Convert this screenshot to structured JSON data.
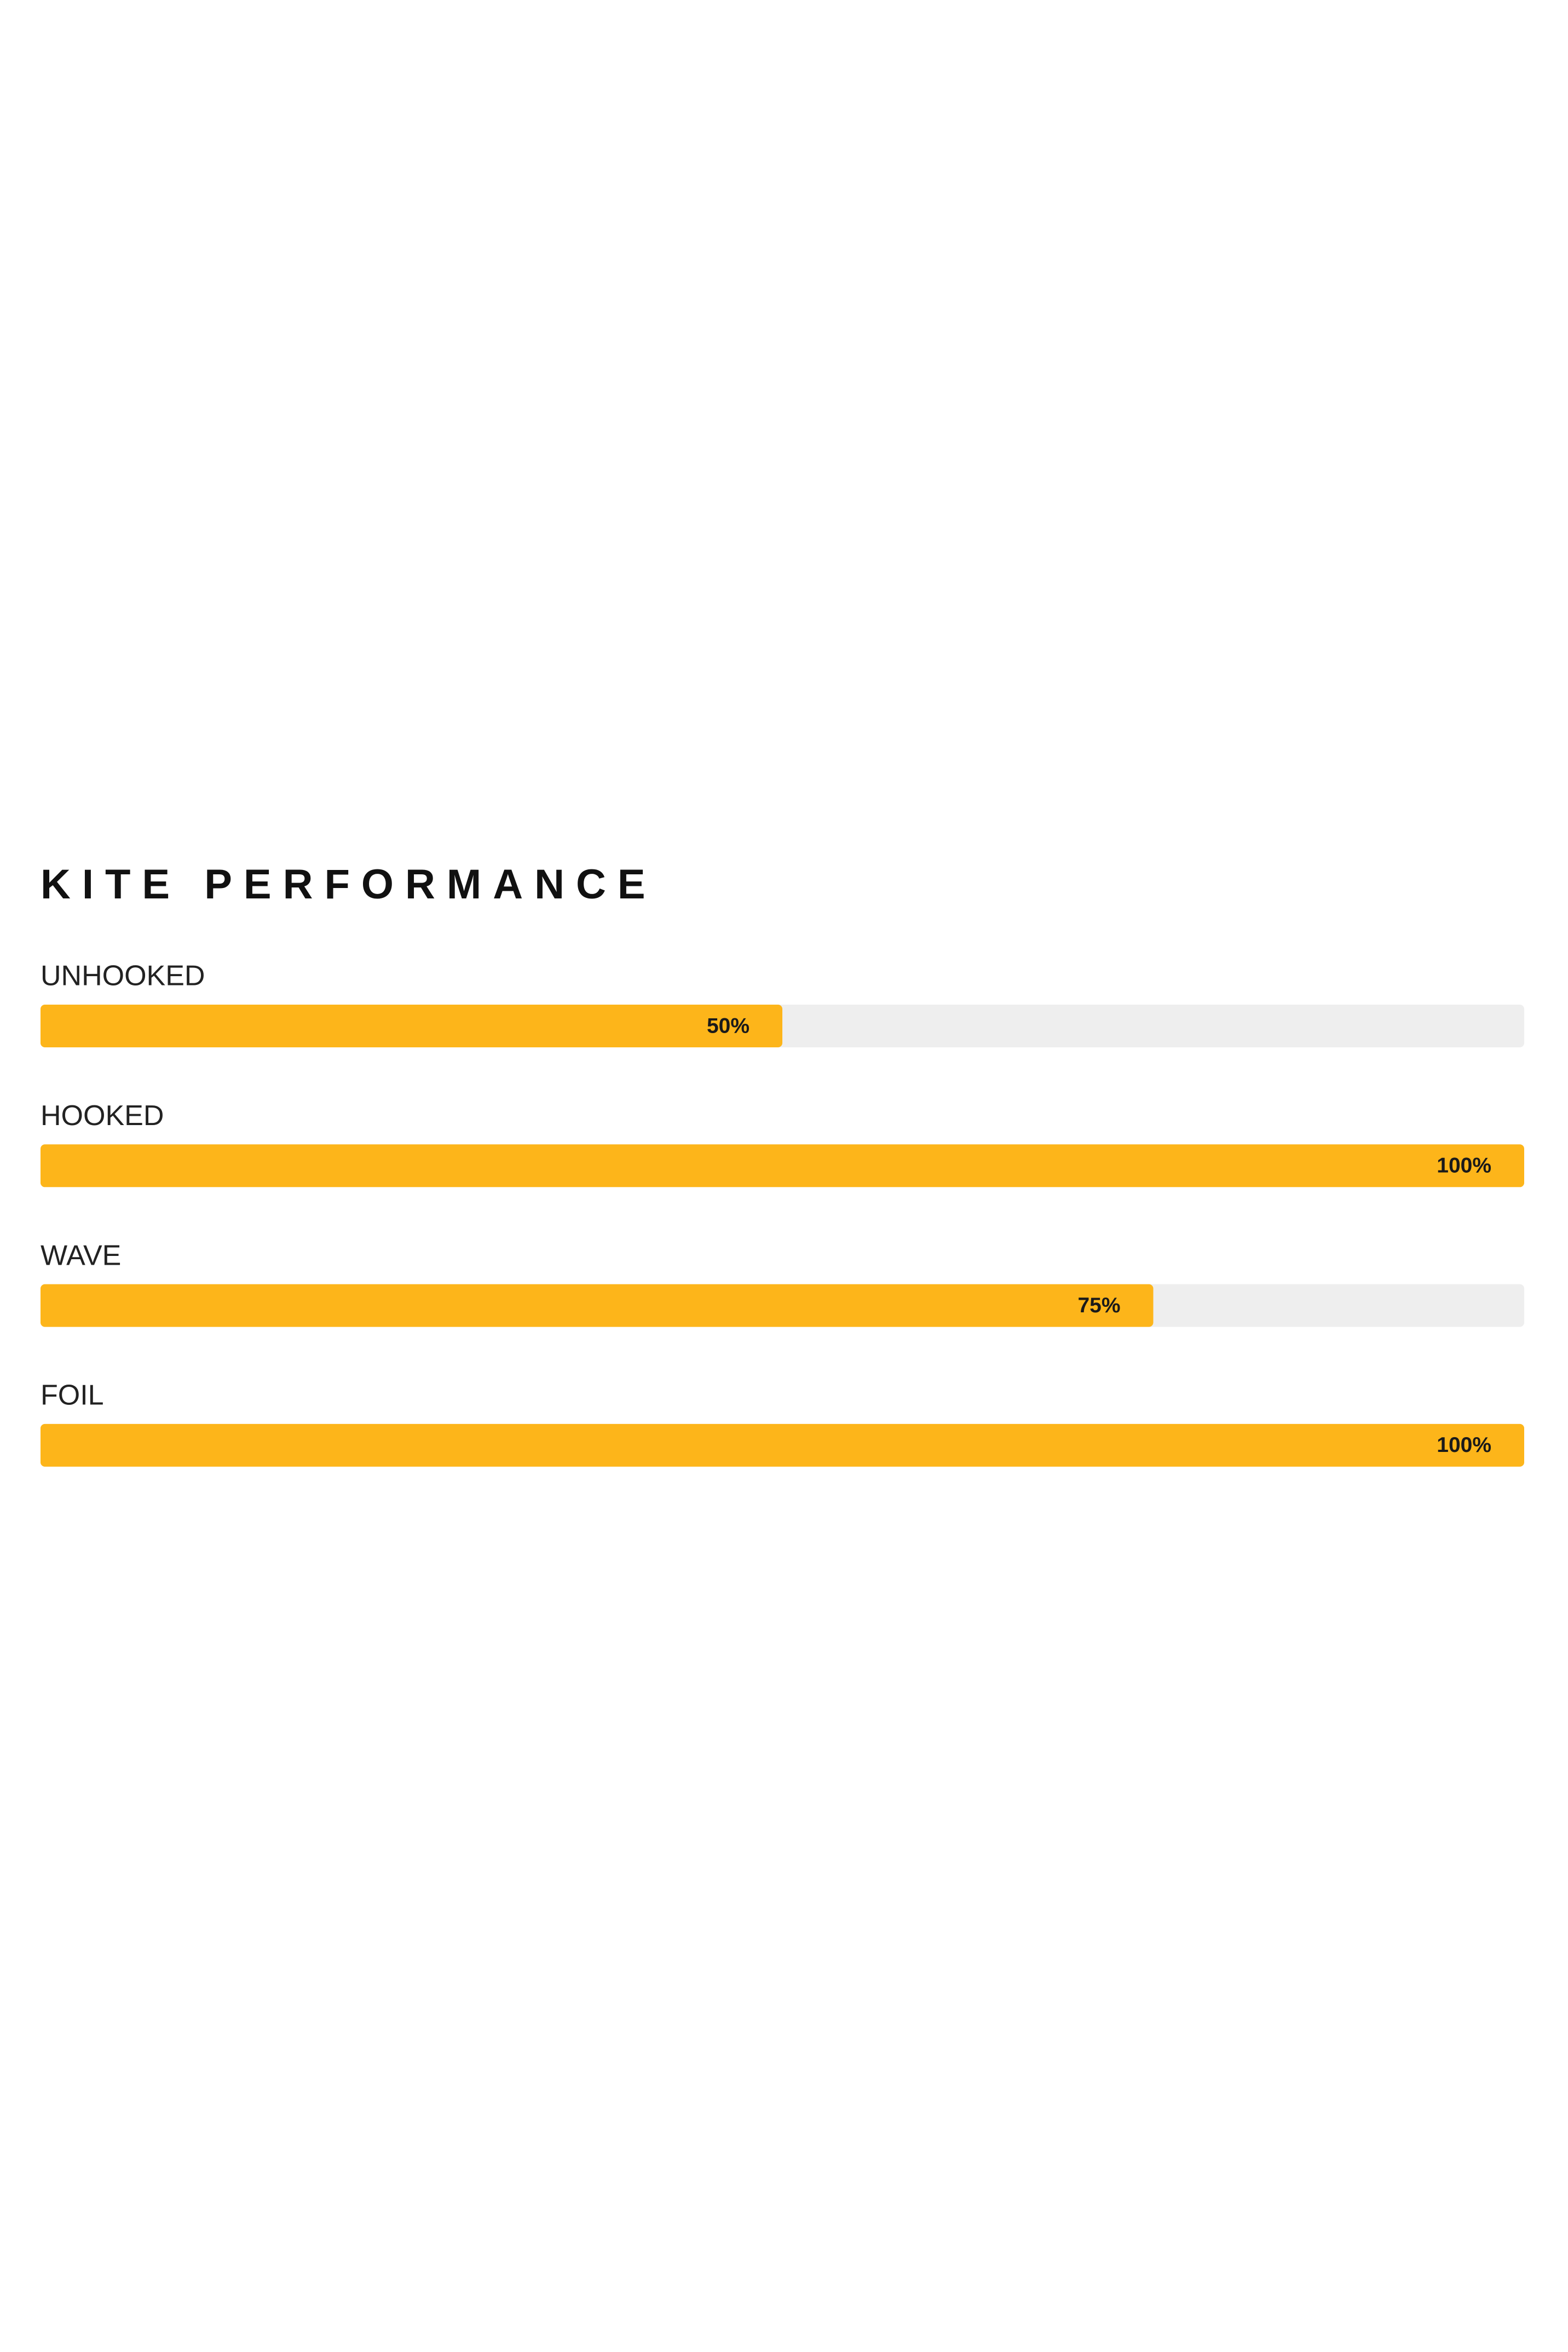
{
  "chart_data": {
    "type": "bar",
    "orientation": "horizontal",
    "title": "KITE PERFORMANCE",
    "categories": [
      "UNHOOKED",
      "HOOKED",
      "WAVE",
      "FOIL"
    ],
    "values": [
      50,
      100,
      75,
      100
    ],
    "value_labels": [
      "50%",
      "100%",
      "75%",
      "100%"
    ],
    "xlim": [
      0,
      100
    ],
    "color": "#fdb51a",
    "track_color": "#eeeeee"
  }
}
